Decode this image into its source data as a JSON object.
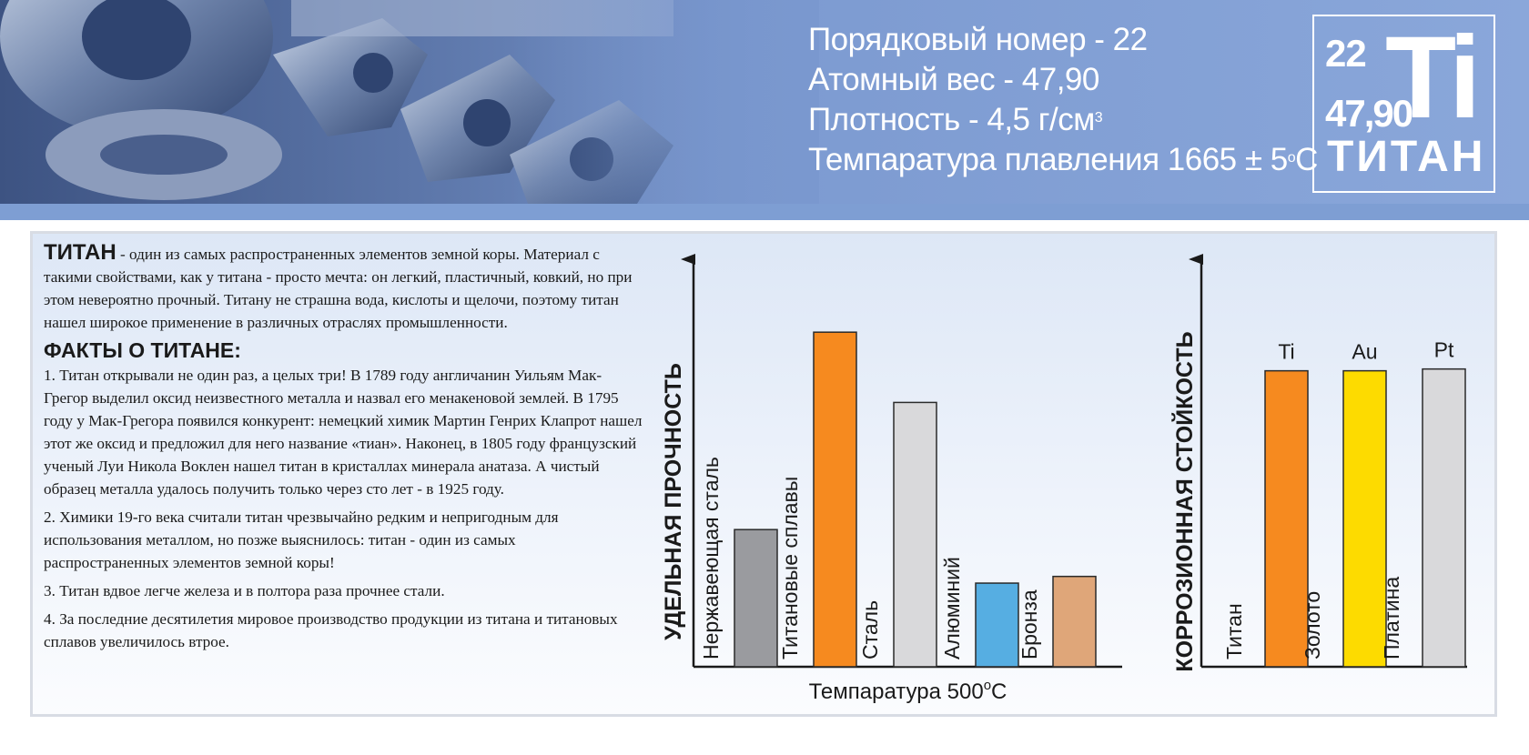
{
  "header": {
    "lines": [
      {
        "text": "Порядковый номер - 22",
        "sup": ""
      },
      {
        "text": "Атомный вес - 47,90",
        "sup": ""
      },
      {
        "text": "Плотность - 4,5 г/см",
        "sup": "3"
      },
      {
        "text": "Темпаратура плавления 1665 ± 5",
        "sup": "o",
        "suffix": "C"
      }
    ],
    "tile": {
      "number": "22",
      "weight": "47,90",
      "symbol": "Ti",
      "name": "ТИТАН"
    }
  },
  "intro": {
    "title": "ТИТАН",
    "text": " - один из самых распространенных элементов земной коры. Материал с такими свойствами, как у титана - просто мечта: он легкий, пластичный, ковкий, но при этом невероятно прочный. Титану не страшна вода, кислоты и щелочи, поэтому титан нашел широкое применение в различных отраслях промышленности."
  },
  "facts": {
    "title": "ФАКТЫ О ТИТАНЕ:",
    "items": [
      "1. Титан открывали не один раз, а целых три! В 1789 году англичанин Уильям Мак-Грегор выделил оксид неизвестного металла и назвал его менакеновой землей. В 1795 году у Мак-Грегора появился конкурент: немецкий химик Мартин Генрих Клапрот нашел этот же оксид  и предложил для него название «тиан». Наконец, в 1805 году французский ученый Луи Никола Воклен нашел титан в кристаллах минерала анатаза. А чистый образец металла удалось получить только через сто лет - в 1925 году.",
      "2. Химики 19-го века считали титан чрезвычайно редким и непригодным для использования металлом, но позже выяснилось: титан - один из самых распространенных элементов земной коры!",
      "3. Титан вдвое легче железа и в полтора раза прочнее стали.",
      "4. За последние десятилетия мировое производство продукции из титана и титановых сплавов увеличилось втрое."
    ]
  },
  "chart_data": [
    {
      "type": "bar",
      "ylabel": "УДЕЛЬНАЯ ПРОЧНОСТЬ",
      "xlabel": "Темпаратура 500",
      "xlabel_sup": "o",
      "xlabel_suffix": "C",
      "categories": [
        "Нержавеющая сталь",
        "Титановые сплавы",
        "Сталь",
        "Алюминий",
        "Бронза"
      ],
      "values": [
        41,
        100,
        79,
        25,
        27
      ],
      "colors": [
        "#9a9b9f",
        "#f68a1f",
        "#d9d9db",
        "#56aee2",
        "#dfa679"
      ],
      "ylim": [
        0,
        115
      ],
      "grid": false
    },
    {
      "type": "bar",
      "ylabel": "КОРРОЗИОННАЯ СТОЙКОСТЬ",
      "xlabel": "",
      "categories": [
        "Титан",
        "Золото",
        "Платина"
      ],
      "bar_labels": [
        "Ti",
        "Au",
        "Pt"
      ],
      "values": [
        100,
        100,
        100.6
      ],
      "colors": [
        "#f68a1f",
        "#fddb00",
        "#d9d9db"
      ],
      "ylim": [
        0,
        130
      ],
      "grid": false
    }
  ]
}
